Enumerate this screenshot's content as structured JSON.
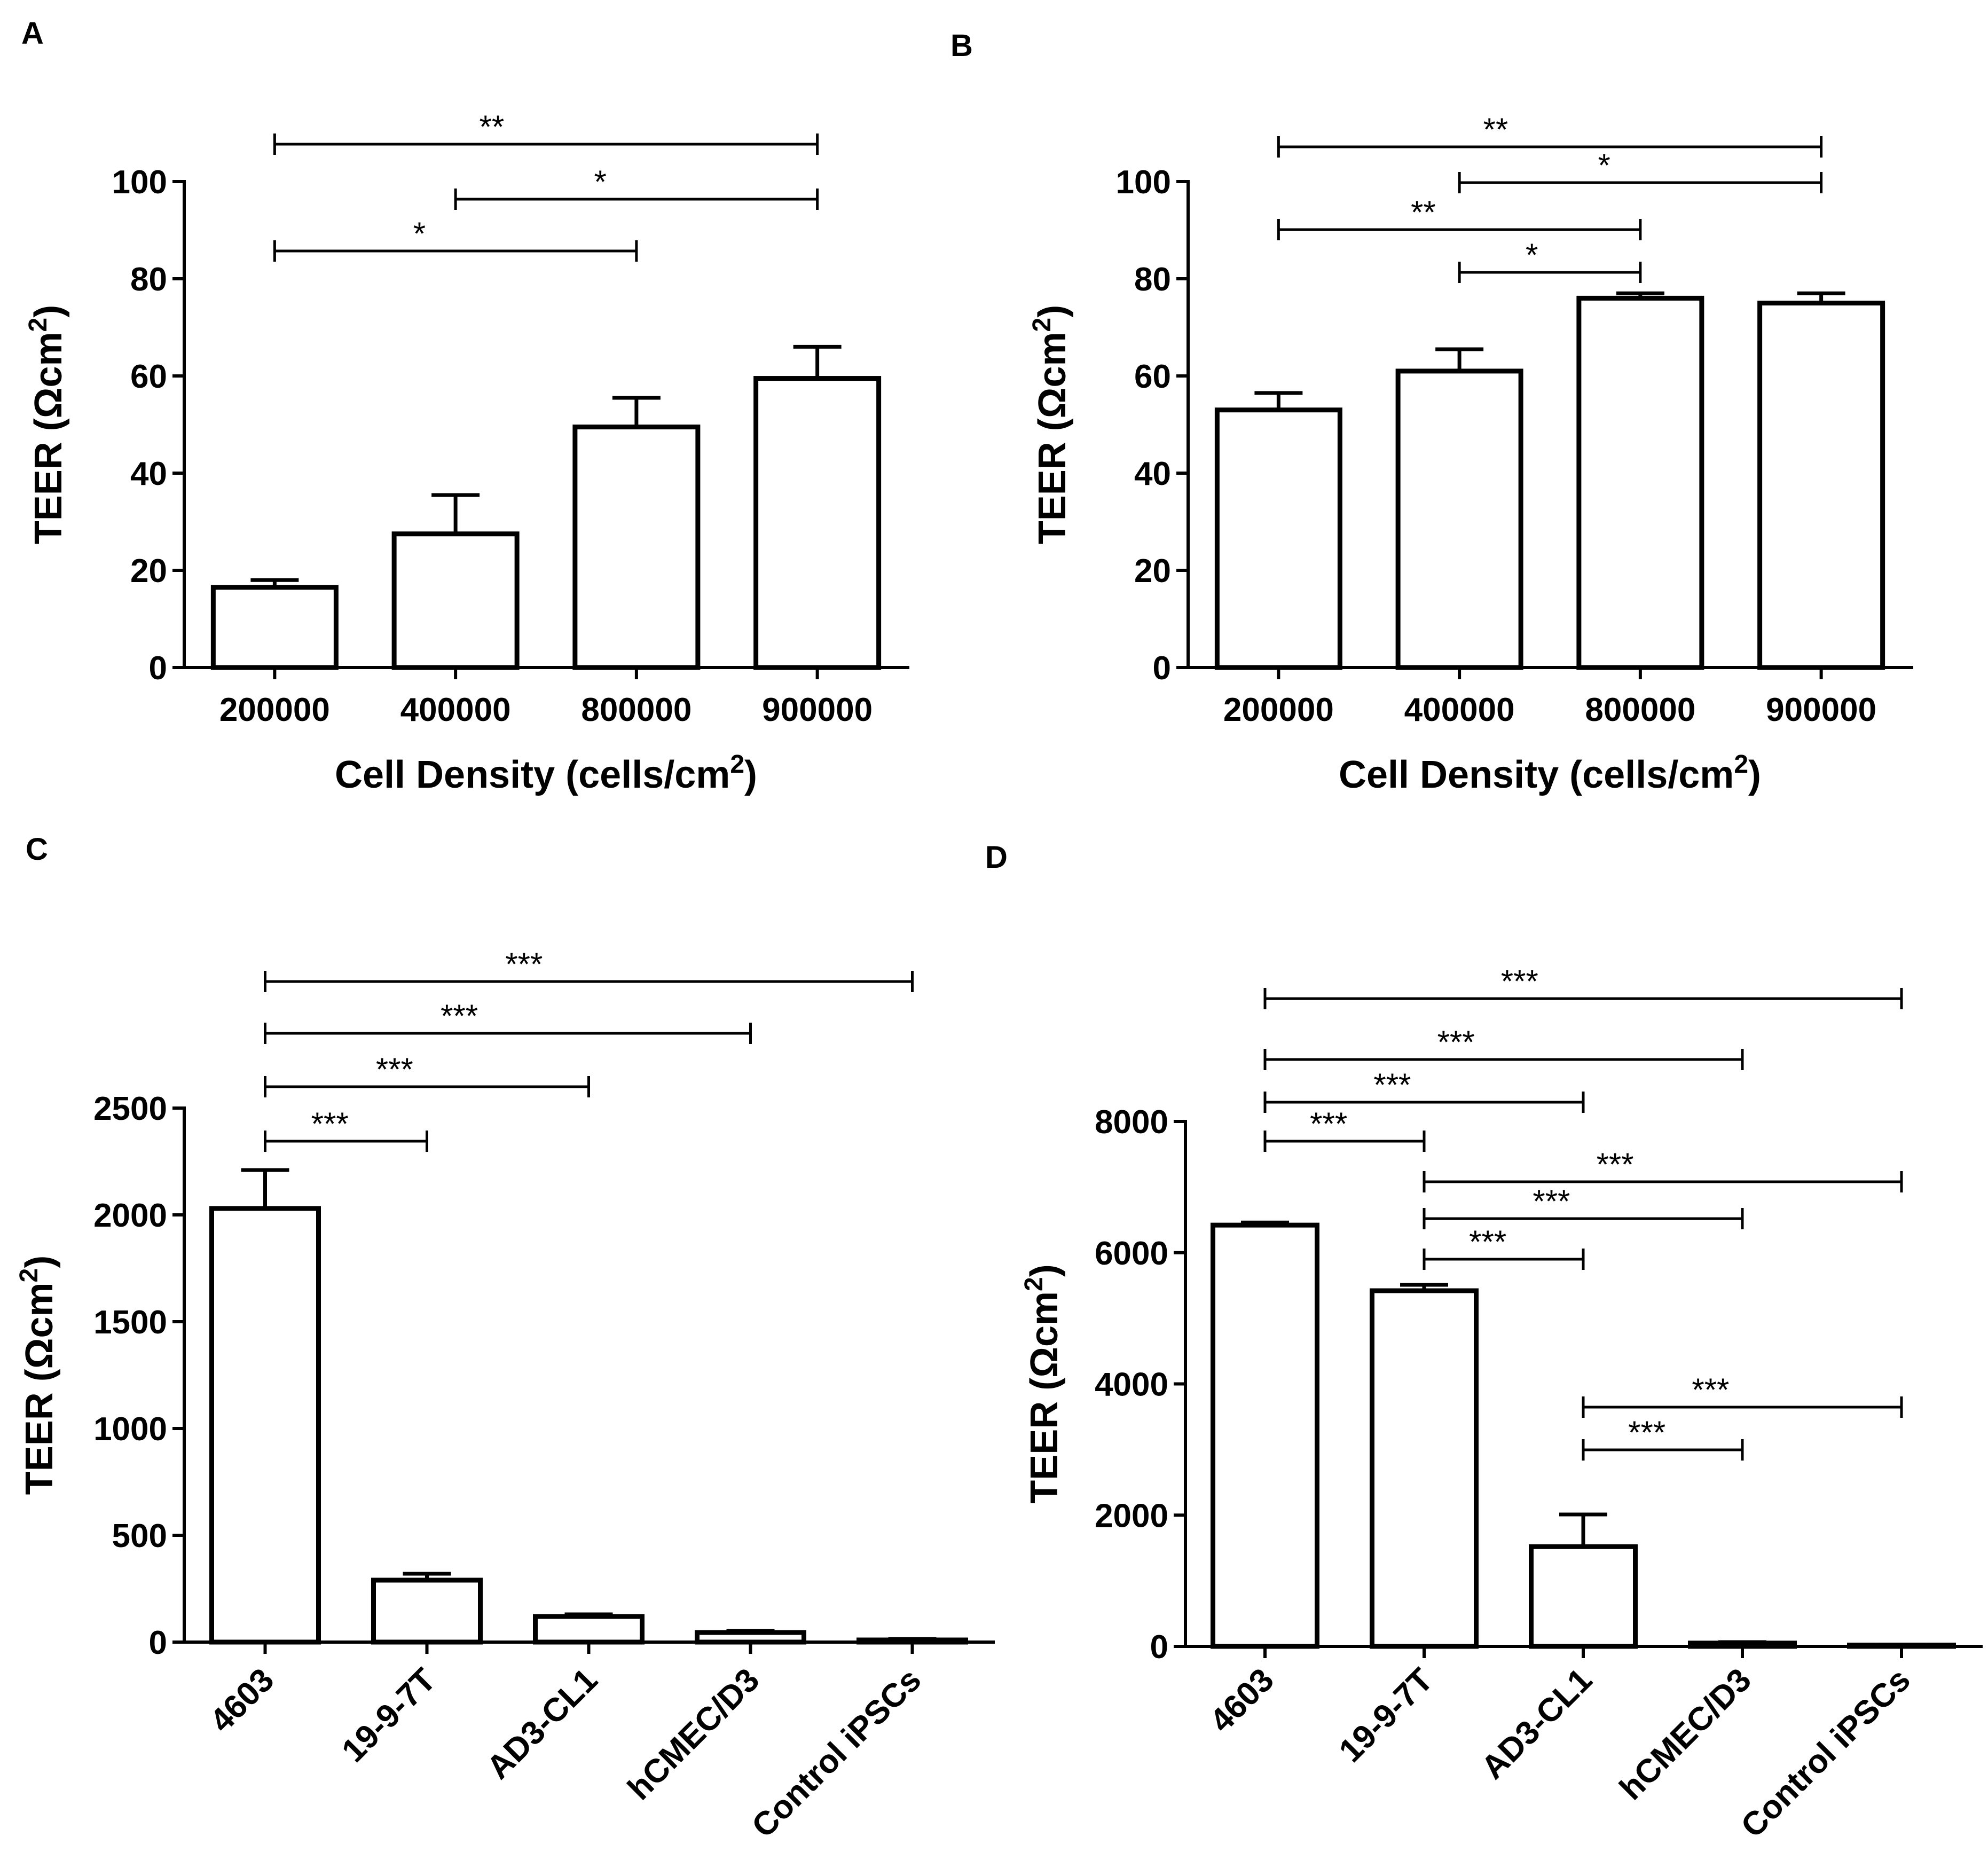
{
  "figure": {
    "panels": [
      "A",
      "B",
      "C",
      "D"
    ]
  },
  "chart_data": [
    {
      "panel": "A",
      "type": "bar",
      "title": "",
      "categories": [
        "200000",
        "400000",
        "800000",
        "900000"
      ],
      "values": [
        16.5,
        27.5,
        49.5,
        59.5
      ],
      "errors": [
        1.5,
        8,
        6,
        6.5
      ],
      "xlabel_main": "Cell Density (cells/cm",
      "xlabel_sup": "2",
      "xlabel_end": ")",
      "ylabel_main": "TEER (Ωcm",
      "ylabel_sup": "2",
      "ylabel_end": ")",
      "ylim": [
        0,
        100
      ],
      "yticks": [
        0,
        20,
        40,
        60,
        80,
        100
      ],
      "comparisons": [
        {
          "from": 0,
          "to": 3,
          "label": "**"
        },
        {
          "from": 1,
          "to": 3,
          "label": "*"
        },
        {
          "from": 0,
          "to": 2,
          "label": "*"
        }
      ]
    },
    {
      "panel": "B",
      "type": "bar",
      "title": "",
      "categories": [
        "200000",
        "400000",
        "800000",
        "900000"
      ],
      "values": [
        53,
        61,
        76,
        75
      ],
      "errors": [
        3.5,
        4.5,
        1,
        2
      ],
      "xlabel_main": "Cell Density (cells/cm",
      "xlabel_sup": "2",
      "xlabel_end": ")",
      "ylabel_main": "TEER (Ωcm",
      "ylabel_sup": "2",
      "ylabel_end": ")",
      "ylim": [
        0,
        100
      ],
      "yticks": [
        0,
        20,
        40,
        60,
        80,
        100
      ],
      "comparisons": [
        {
          "from": 0,
          "to": 3,
          "label": "**"
        },
        {
          "from": 1,
          "to": 3,
          "label": "*"
        },
        {
          "from": 0,
          "to": 2,
          "label": "**"
        },
        {
          "from": 1,
          "to": 2,
          "label": "*"
        }
      ]
    },
    {
      "panel": "C",
      "type": "bar",
      "title": "",
      "categories": [
        "4603",
        "19-9-7T",
        "AD3-CL1",
        "hCMEC/D3",
        "Control iPSCs"
      ],
      "values": [
        2030,
        290,
        120,
        45,
        10
      ],
      "errors": [
        180,
        30,
        10,
        8,
        5
      ],
      "xlabel_main": "",
      "xlabel_sup": "",
      "xlabel_end": "",
      "ylabel_main": "TEER (Ωcm",
      "ylabel_sup": "2",
      "ylabel_end": ")",
      "ylim": [
        0,
        2500
      ],
      "yticks": [
        0,
        500,
        1000,
        1500,
        2000,
        2500
      ],
      "comparisons": [
        {
          "from": 0,
          "to": 4,
          "label": "***"
        },
        {
          "from": 0,
          "to": 3,
          "label": "***"
        },
        {
          "from": 0,
          "to": 2,
          "label": "***"
        },
        {
          "from": 0,
          "to": 1,
          "label": "***"
        }
      ]
    },
    {
      "panel": "D",
      "type": "bar",
      "title": "",
      "categories": [
        "4603",
        "19-9-7T",
        "AD3-CL1",
        "hCMEC/D3",
        "Control iPSCs"
      ],
      "values": [
        6420,
        5420,
        1520,
        50,
        20
      ],
      "errors": [
        40,
        90,
        490,
        15,
        8
      ],
      "xlabel_main": "",
      "xlabel_sup": "",
      "xlabel_end": "",
      "ylabel_main": "TEER (Ωcm",
      "ylabel_sup": "2",
      "ylabel_end": ")",
      "ylim": [
        0,
        8000
      ],
      "yticks": [
        0,
        2000,
        4000,
        6000,
        8000
      ],
      "comparisons": [
        {
          "from": 0,
          "to": 4,
          "label": "***"
        },
        {
          "from": 0,
          "to": 3,
          "label": "***"
        },
        {
          "from": 0,
          "to": 2,
          "label": "***"
        },
        {
          "from": 0,
          "to": 1,
          "label": "***"
        },
        {
          "from": 1,
          "to": 4,
          "label": "***"
        },
        {
          "from": 1,
          "to": 3,
          "label": "***"
        },
        {
          "from": 1,
          "to": 2,
          "label": "***"
        },
        {
          "from": 2,
          "to": 4,
          "label": "***"
        },
        {
          "from": 2,
          "to": 3,
          "label": "***"
        }
      ]
    }
  ]
}
